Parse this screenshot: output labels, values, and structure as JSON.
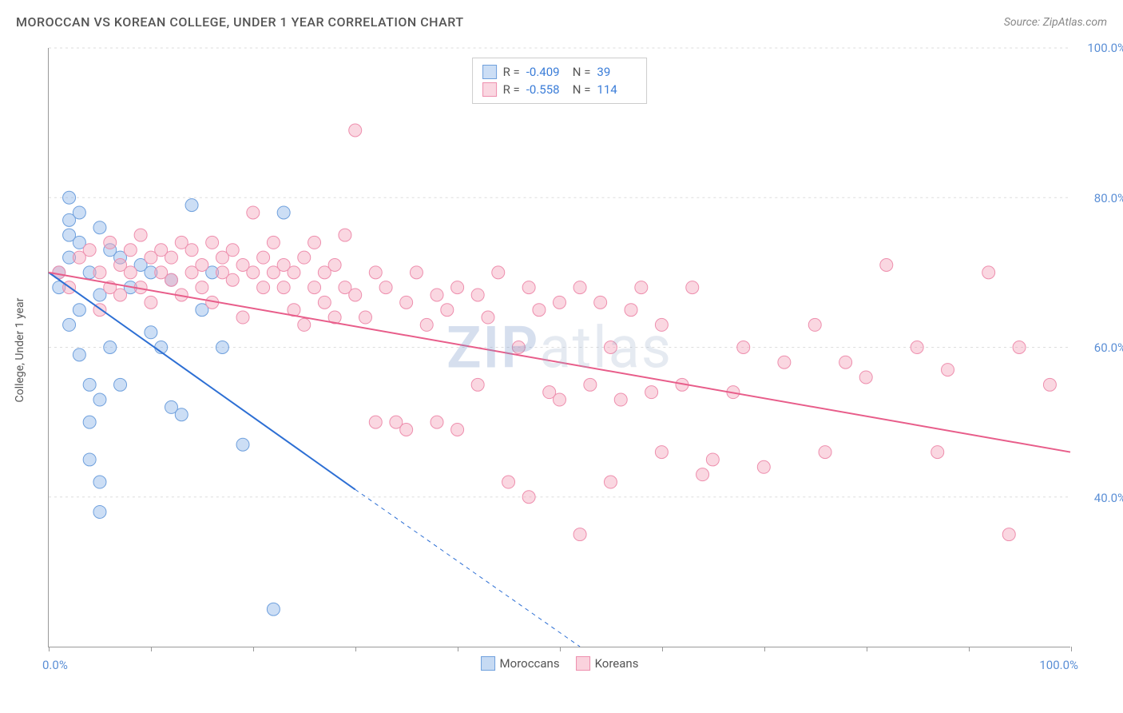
{
  "header": {
    "title": "MOROCCAN VS KOREAN COLLEGE, UNDER 1 YEAR CORRELATION CHART",
    "source": "Source: ZipAtlas.com"
  },
  "chart": {
    "type": "scatter",
    "ylabel": "College, Under 1 year",
    "xlim": [
      0,
      100
    ],
    "ylim": [
      20,
      100
    ],
    "ytick_values": [
      40,
      60,
      80,
      100
    ],
    "ytick_labels": [
      "40.0%",
      "60.0%",
      "80.0%",
      "100.0%"
    ],
    "xtick_values": [
      0,
      10,
      20,
      30,
      40,
      50,
      60,
      70,
      80,
      90,
      100
    ],
    "xaxis_label_left": "0.0%",
    "xaxis_label_right": "100.0%",
    "background_color": "#ffffff",
    "grid_color": "#dddddd",
    "axis_color": "#999999",
    "tick_label_color": "#5b8fd6",
    "watermark": "ZIPatlas",
    "series": [
      {
        "name": "Moroccans",
        "marker_color": "#8db5e8",
        "marker_fill": "rgba(141,181,232,0.45)",
        "marker_border": "#6fa0dd",
        "line_color": "#2d6fd4",
        "r_label": "R =",
        "r_value": "-0.409",
        "n_label": "N =",
        "n_value": "39",
        "trend_solid": [
          [
            0,
            70
          ],
          [
            30,
            41
          ]
        ],
        "trend_dashed": [
          [
            30,
            41
          ],
          [
            52,
            20
          ]
        ],
        "points": [
          [
            1,
            70
          ],
          [
            1,
            68
          ],
          [
            2,
            72
          ],
          [
            2,
            80
          ],
          [
            2,
            77
          ],
          [
            2,
            75
          ],
          [
            2,
            63
          ],
          [
            3,
            65
          ],
          [
            3,
            78
          ],
          [
            3,
            74
          ],
          [
            3,
            59
          ],
          [
            4,
            70
          ],
          [
            4,
            55
          ],
          [
            4,
            50
          ],
          [
            4,
            45
          ],
          [
            5,
            76
          ],
          [
            5,
            67
          ],
          [
            5,
            53
          ],
          [
            5,
            42
          ],
          [
            5,
            38
          ],
          [
            6,
            73
          ],
          [
            6,
            60
          ],
          [
            7,
            72
          ],
          [
            7,
            55
          ],
          [
            8,
            68
          ],
          [
            9,
            71
          ],
          [
            10,
            70
          ],
          [
            10,
            62
          ],
          [
            11,
            60
          ],
          [
            12,
            52
          ],
          [
            12,
            69
          ],
          [
            13,
            51
          ],
          [
            14,
            79
          ],
          [
            15,
            65
          ],
          [
            16,
            70
          ],
          [
            17,
            60
          ],
          [
            19,
            47
          ],
          [
            22,
            25
          ],
          [
            23,
            78
          ]
        ]
      },
      {
        "name": "Koreans",
        "marker_color": "#f5a6bc",
        "marker_fill": "rgba(245,166,188,0.45)",
        "marker_border": "#ee8fae",
        "line_color": "#e85d8a",
        "r_label": "R =",
        "r_value": "-0.558",
        "n_label": "N =",
        "n_value": "114",
        "trend_solid": [
          [
            0,
            70
          ],
          [
            100,
            46
          ]
        ],
        "trend_dashed": null,
        "points": [
          [
            1,
            70
          ],
          [
            2,
            68
          ],
          [
            3,
            72
          ],
          [
            4,
            73
          ],
          [
            5,
            70
          ],
          [
            5,
            65
          ],
          [
            6,
            74
          ],
          [
            6,
            68
          ],
          [
            7,
            71
          ],
          [
            7,
            67
          ],
          [
            8,
            70
          ],
          [
            8,
            73
          ],
          [
            9,
            68
          ],
          [
            9,
            75
          ],
          [
            10,
            72
          ],
          [
            10,
            66
          ],
          [
            11,
            70
          ],
          [
            11,
            73
          ],
          [
            12,
            69
          ],
          [
            12,
            72
          ],
          [
            13,
            74
          ],
          [
            13,
            67
          ],
          [
            14,
            70
          ],
          [
            14,
            73
          ],
          [
            15,
            68
          ],
          [
            15,
            71
          ],
          [
            16,
            74
          ],
          [
            16,
            66
          ],
          [
            17,
            70
          ],
          [
            17,
            72
          ],
          [
            18,
            69
          ],
          [
            18,
            73
          ],
          [
            19,
            71
          ],
          [
            19,
            64
          ],
          [
            20,
            70
          ],
          [
            20,
            78
          ],
          [
            21,
            68
          ],
          [
            21,
            72
          ],
          [
            22,
            70
          ],
          [
            22,
            74
          ],
          [
            23,
            68
          ],
          [
            23,
            71
          ],
          [
            24,
            65
          ],
          [
            24,
            70
          ],
          [
            25,
            72
          ],
          [
            25,
            63
          ],
          [
            26,
            68
          ],
          [
            26,
            74
          ],
          [
            27,
            70
          ],
          [
            27,
            66
          ],
          [
            28,
            71
          ],
          [
            28,
            64
          ],
          [
            29,
            68
          ],
          [
            29,
            75
          ],
          [
            30,
            89
          ],
          [
            30,
            67
          ],
          [
            31,
            64
          ],
          [
            32,
            70
          ],
          [
            32,
            50
          ],
          [
            33,
            68
          ],
          [
            34,
            50
          ],
          [
            35,
            66
          ],
          [
            35,
            49
          ],
          [
            36,
            70
          ],
          [
            37,
            63
          ],
          [
            38,
            50
          ],
          [
            38,
            67
          ],
          [
            39,
            65
          ],
          [
            40,
            68
          ],
          [
            40,
            49
          ],
          [
            42,
            67
          ],
          [
            42,
            55
          ],
          [
            43,
            64
          ],
          [
            44,
            70
          ],
          [
            45,
            42
          ],
          [
            46,
            60
          ],
          [
            47,
            68
          ],
          [
            47,
            40
          ],
          [
            48,
            65
          ],
          [
            49,
            54
          ],
          [
            50,
            66
          ],
          [
            50,
            53
          ],
          [
            52,
            68
          ],
          [
            52,
            35
          ],
          [
            53,
            55
          ],
          [
            54,
            66
          ],
          [
            55,
            60
          ],
          [
            55,
            42
          ],
          [
            56,
            53
          ],
          [
            57,
            65
          ],
          [
            58,
            68
          ],
          [
            59,
            54
          ],
          [
            60,
            63
          ],
          [
            60,
            46
          ],
          [
            62,
            55
          ],
          [
            63,
            68
          ],
          [
            64,
            43
          ],
          [
            65,
            45
          ],
          [
            67,
            54
          ],
          [
            68,
            60
          ],
          [
            70,
            44
          ],
          [
            72,
            58
          ],
          [
            75,
            63
          ],
          [
            76,
            46
          ],
          [
            78,
            58
          ],
          [
            80,
            56
          ],
          [
            82,
            71
          ],
          [
            85,
            60
          ],
          [
            87,
            46
          ],
          [
            88,
            57
          ],
          [
            92,
            70
          ],
          [
            94,
            35
          ],
          [
            95,
            60
          ],
          [
            98,
            55
          ]
        ]
      }
    ],
    "legend_bottom": [
      {
        "swatch_fill": "rgba(141,181,232,0.5)",
        "swatch_border": "#6fa0dd",
        "label": "Moroccans"
      },
      {
        "swatch_fill": "rgba(245,166,188,0.5)",
        "swatch_border": "#ee8fae",
        "label": "Koreans"
      }
    ],
    "marker_radius": 8,
    "line_width": 2
  }
}
